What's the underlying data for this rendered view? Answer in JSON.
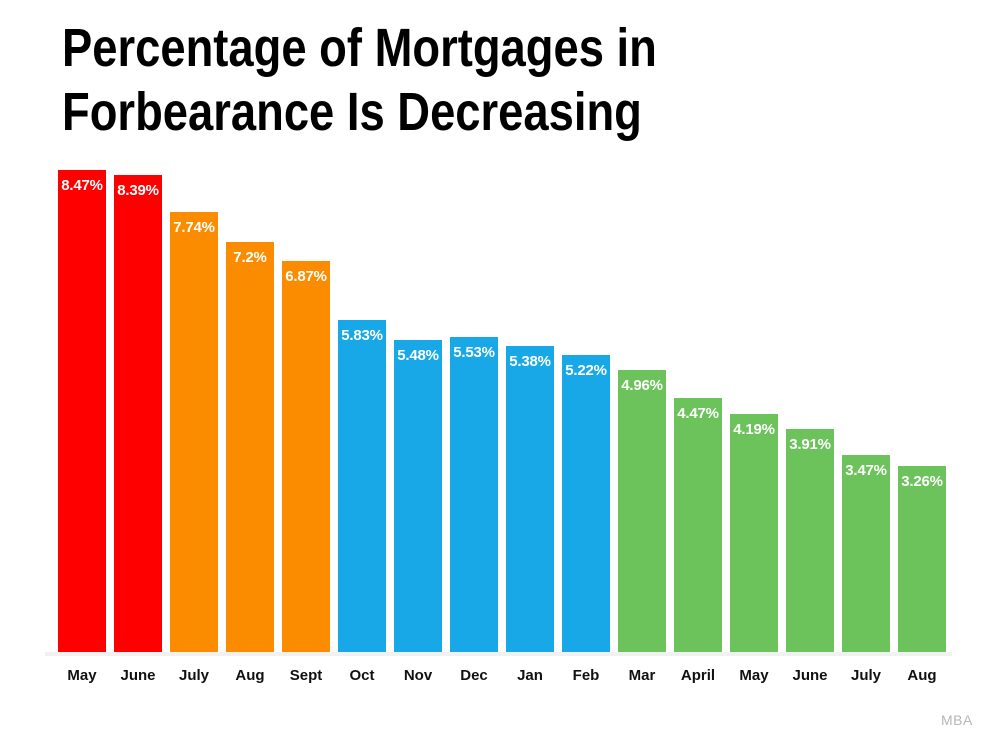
{
  "title": {
    "line1": "Percentage of Mortgages in",
    "line2": "Forbearance Is Decreasing"
  },
  "source_label": "MBA",
  "colors": {
    "background": "#ffffff",
    "title_text": "#000000",
    "axis_label_text": "#111111",
    "value_label_text": "#ffffff",
    "baseline": "#f1f1f2",
    "source_label_text": "#b3b9b3",
    "series_red": "#ff0000",
    "series_orange": "#fb8c00",
    "series_blue": "#18a8e8",
    "series_green": "#6dc35b"
  },
  "chart_data": {
    "type": "bar",
    "title": "Percentage of Mortgages in Forbearance Is Decreasing",
    "categories": [
      "May",
      "June",
      "July",
      "Aug",
      "Sept",
      "Oct",
      "Nov",
      "Dec",
      "Jan",
      "Feb",
      "Mar",
      "April",
      "May",
      "June",
      "July",
      "Aug"
    ],
    "values": [
      8.47,
      8.39,
      7.74,
      7.2,
      6.87,
      5.83,
      5.48,
      5.53,
      5.38,
      5.22,
      4.96,
      4.47,
      4.19,
      3.91,
      3.47,
      3.26
    ],
    "value_labels": [
      "8.47%",
      "8.39%",
      "7.74%",
      "7.2%",
      "6.87%",
      "5.83%",
      "5.48%",
      "5.53%",
      "5.38%",
      "5.22%",
      "4.96%",
      "4.47%",
      "4.19%",
      "3.91%",
      "3.47%",
      "3.26%"
    ],
    "bar_colors": [
      "#ff0000",
      "#ff0000",
      "#fb8c00",
      "#fb8c00",
      "#fb8c00",
      "#18a8e8",
      "#18a8e8",
      "#18a8e8",
      "#18a8e8",
      "#18a8e8",
      "#6dc35b",
      "#6dc35b",
      "#6dc35b",
      "#6dc35b",
      "#6dc35b",
      "#6dc35b"
    ],
    "xlabel": "",
    "ylabel": "",
    "ylim": [
      0,
      8.47
    ],
    "grid": false,
    "legend": "none",
    "value_labels_position": "inside-top",
    "source": "MBA"
  }
}
